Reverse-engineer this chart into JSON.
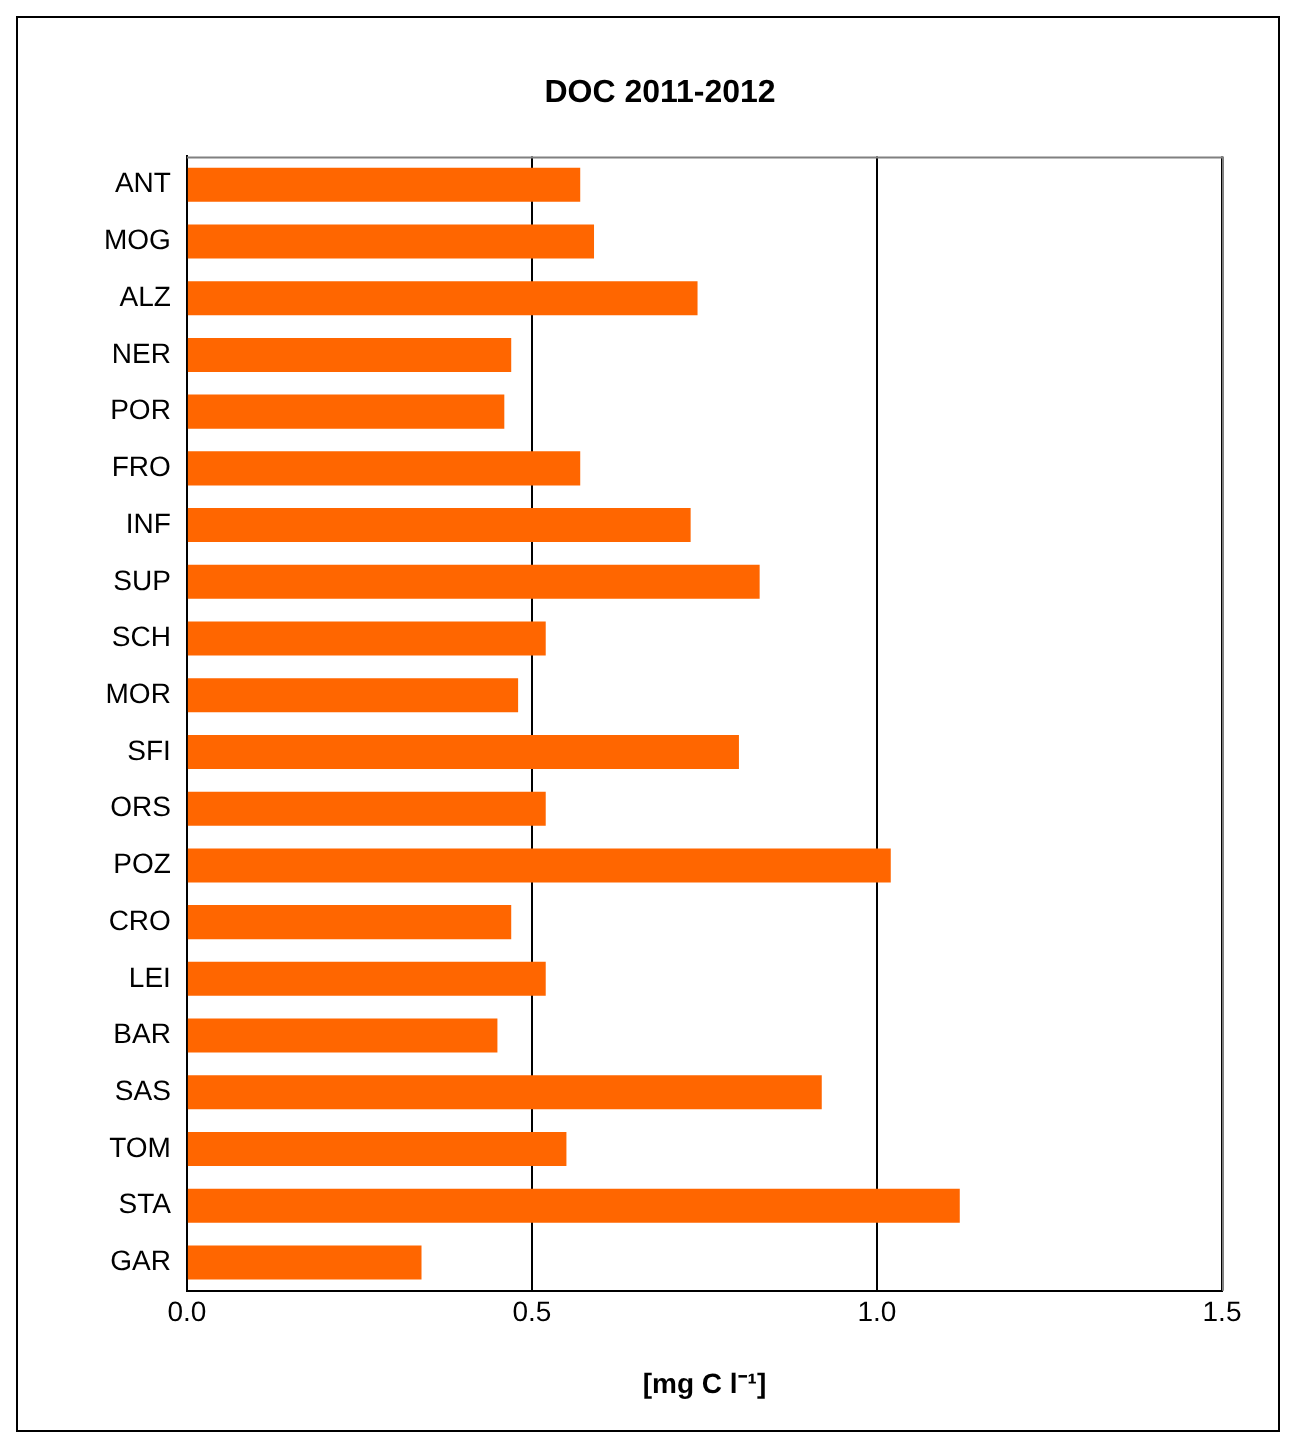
{
  "chart_data": {
    "type": "bar",
    "orientation": "horizontal",
    "title": "DOC 2011-2012",
    "xlabel": "[mg C l⁻¹]",
    "categories": [
      "ANT",
      "MOG",
      "ALZ",
      "NER",
      "POR",
      "FRO",
      "INF",
      "SUP",
      "SCH",
      "MOR",
      "SFI",
      "ORS",
      "POZ",
      "CRO",
      "LEI",
      "BAR",
      "SAS",
      "TOM",
      "STA",
      "GAR"
    ],
    "values": [
      0.57,
      0.59,
      0.74,
      0.47,
      0.46,
      0.57,
      0.73,
      0.83,
      0.52,
      0.48,
      0.8,
      0.52,
      1.02,
      0.47,
      0.52,
      0.45,
      0.92,
      0.55,
      1.12,
      0.34
    ],
    "color": "#ff6600",
    "xlim": [
      0,
      1.5
    ],
    "xticks": [
      {
        "value": 0,
        "label": "0.0"
      },
      {
        "value": 0.5,
        "label": "0.5"
      },
      {
        "value": 1,
        "label": "1.0"
      },
      {
        "value": 1.5,
        "label": "1.5"
      }
    ],
    "grid": "x",
    "legend": false
  }
}
